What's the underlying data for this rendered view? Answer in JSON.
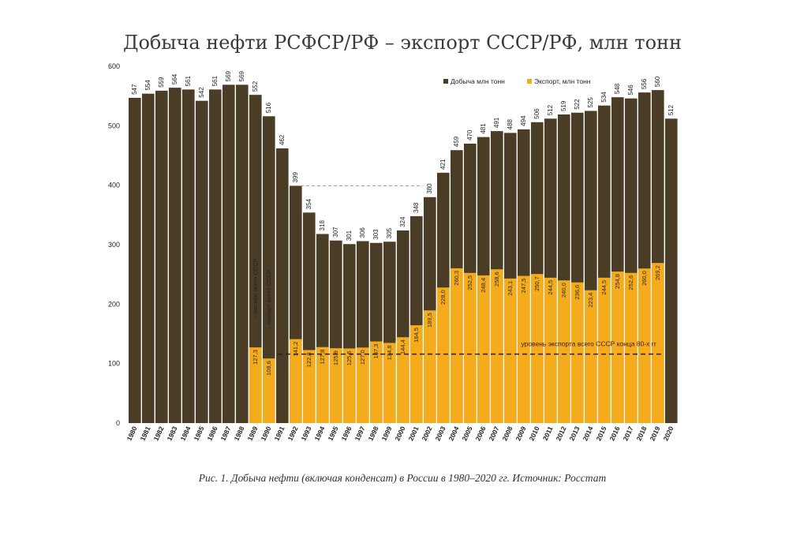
{
  "chart_data": {
    "type": "bar",
    "title": "Добыча нефти РСФСР/РФ – экспорт СССР/РФ, млн  тонн",
    "caption": "Рис. 1. Добыча нефти (включая конденсат) в России в 1980–2020 гг. Источник: Росстат",
    "ylim": [
      0,
      600
    ],
    "yticks": [
      0,
      100,
      200,
      300,
      400,
      500,
      600
    ],
    "grid": false,
    "legend_position": "top-right",
    "categories": [
      "1980",
      "1981",
      "1982",
      "1983",
      "1984",
      "1985",
      "1986",
      "1987",
      "1988",
      "1989",
      "1990",
      "1991",
      "1992",
      "1993",
      "1994",
      "1995",
      "1996",
      "1997",
      "1998",
      "1999",
      "2000",
      "2001",
      "2002",
      "2003",
      "2004",
      "2005",
      "2006",
      "2007",
      "2008",
      "2009",
      "2010",
      "2011",
      "2012",
      "2013",
      "2014",
      "2015",
      "2016",
      "2017",
      "2018",
      "2019",
      "2020"
    ],
    "series": [
      {
        "name": "Добыча млн  тонн",
        "color": "#4b3d25",
        "values": [
          547,
          554,
          559,
          564,
          561,
          542,
          561,
          569,
          569,
          552,
          516,
          462,
          399,
          354,
          318,
          307,
          301,
          306,
          303,
          305,
          324,
          348,
          380,
          421,
          459,
          470,
          481,
          491,
          488,
          494,
          506,
          512,
          519,
          522,
          525,
          534,
          548,
          546,
          556,
          560,
          512
        ],
        "labels": [
          "547",
          "554",
          "559",
          "564",
          "561",
          "542",
          "561",
          "569",
          "569",
          "552",
          "516",
          "462",
          "399",
          "354",
          "318",
          "307",
          "301",
          "306",
          "303",
          "305",
          "324",
          "348",
          "380",
          "421",
          "459",
          "470",
          "481",
          "491",
          "488",
          "494",
          "506",
          "512",
          "519",
          "522",
          "525",
          "534",
          "548",
          "546",
          "556",
          "560",
          "512"
        ]
      },
      {
        "name": "Экспорт,  млн  тонн",
        "color": "#f5ac1c",
        "values": [
          null,
          null,
          null,
          null,
          null,
          null,
          null,
          null,
          null,
          127.3,
          108.6,
          null,
          141.2,
          122.8,
          127.8,
          125.9,
          125.5,
          127.0,
          137.3,
          134.8,
          144.4,
          164.5,
          189.5,
          228.0,
          260.3,
          252.5,
          248.4,
          258.6,
          243.1,
          247.5,
          250.7,
          244.5,
          240.0,
          236.6,
          223.4,
          244.5,
          254.8,
          252.6,
          260.0,
          269.2,
          null
        ],
        "labels": [
          null,
          null,
          null,
          null,
          null,
          null,
          null,
          null,
          null,
          "127,3",
          "108,6",
          null,
          "141,2",
          "122,8",
          "127,8",
          "125,9",
          "125,5",
          "127,0",
          "137,3",
          "134,8",
          "144,4",
          "164,5",
          "189,5",
          "228,0",
          "260,3",
          "252,5",
          "248,4",
          "258,6",
          "243,1",
          "247,5",
          "250,7",
          "244,5",
          "240,0",
          "236,6",
          "223,4",
          "244,5",
          "254,8",
          "252,6",
          "260,0",
          "269,2",
          null
        ]
      }
    ],
    "annotations": {
      "ussr_1989": "– экспорт всего СССР",
      "ussr_1990": "– экспорт всего СССР",
      "ussr_level_line": "уровень экспорта всего СССР конца 80-х гг",
      "ussr_level_value": 116,
      "production_1992_level": 399
    }
  }
}
